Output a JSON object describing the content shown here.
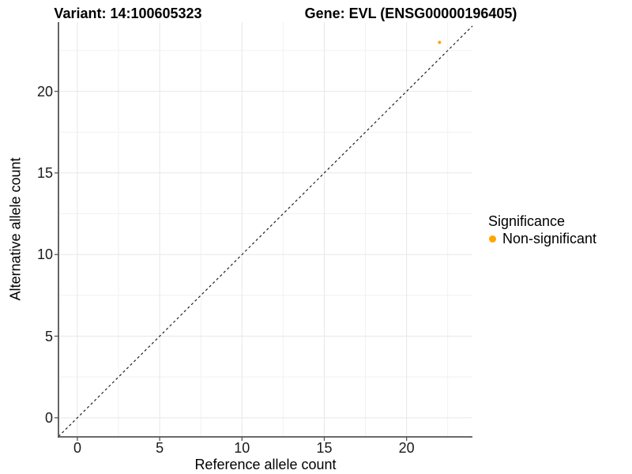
{
  "titles": {
    "variant": "Variant: 14:100605323",
    "gene": "Gene: EVL (ENSG00000196405)"
  },
  "axes": {
    "x": {
      "label": "Reference allele count",
      "tick_labels": [
        "0",
        "5",
        "10",
        "15",
        "20"
      ]
    },
    "y": {
      "label": "Alternative allele count",
      "tick_labels": [
        "0",
        "5",
        "10",
        "15",
        "20"
      ]
    }
  },
  "legend": {
    "title": "Significance",
    "items": [
      {
        "label": "Non-significant",
        "color": "#FFA500"
      }
    ]
  },
  "chart_data": {
    "type": "scatter",
    "title": "Variant: 14:100605323 | Gene: EVL (ENSG00000196405)",
    "xlabel": "Reference allele count",
    "ylabel": "Alternative allele count",
    "xlim": [
      -1.15,
      24.0
    ],
    "ylim": [
      -1.17,
      24.24
    ],
    "x_major_ticks": [
      0,
      5,
      10,
      15,
      20
    ],
    "y_major_ticks": [
      0,
      5,
      10,
      15,
      20
    ],
    "x_minor_ticks": [
      2.5,
      7.5,
      12.5,
      17.5,
      22.5
    ],
    "y_minor_ticks": [
      2.5,
      7.5,
      12.5,
      17.5,
      22.5
    ],
    "grid": "major+minor",
    "legend_position": "right",
    "series": [
      {
        "name": "Non-significant",
        "color": "#FFA500",
        "points": [
          {
            "x": 22,
            "y": 23
          }
        ]
      }
    ],
    "reference_line": {
      "type": "identity y=x",
      "style": "dashed",
      "color": "#222222"
    }
  },
  "style": {
    "point_color": "#FFA500",
    "axis_line_color": "#555555",
    "tick_text_color": "#1a1a1a",
    "grid_major_color": "#e7e7e7",
    "grid_minor_color": "#f1f1f1",
    "background": "#ffffff",
    "dashed_line_color": "#222222"
  }
}
